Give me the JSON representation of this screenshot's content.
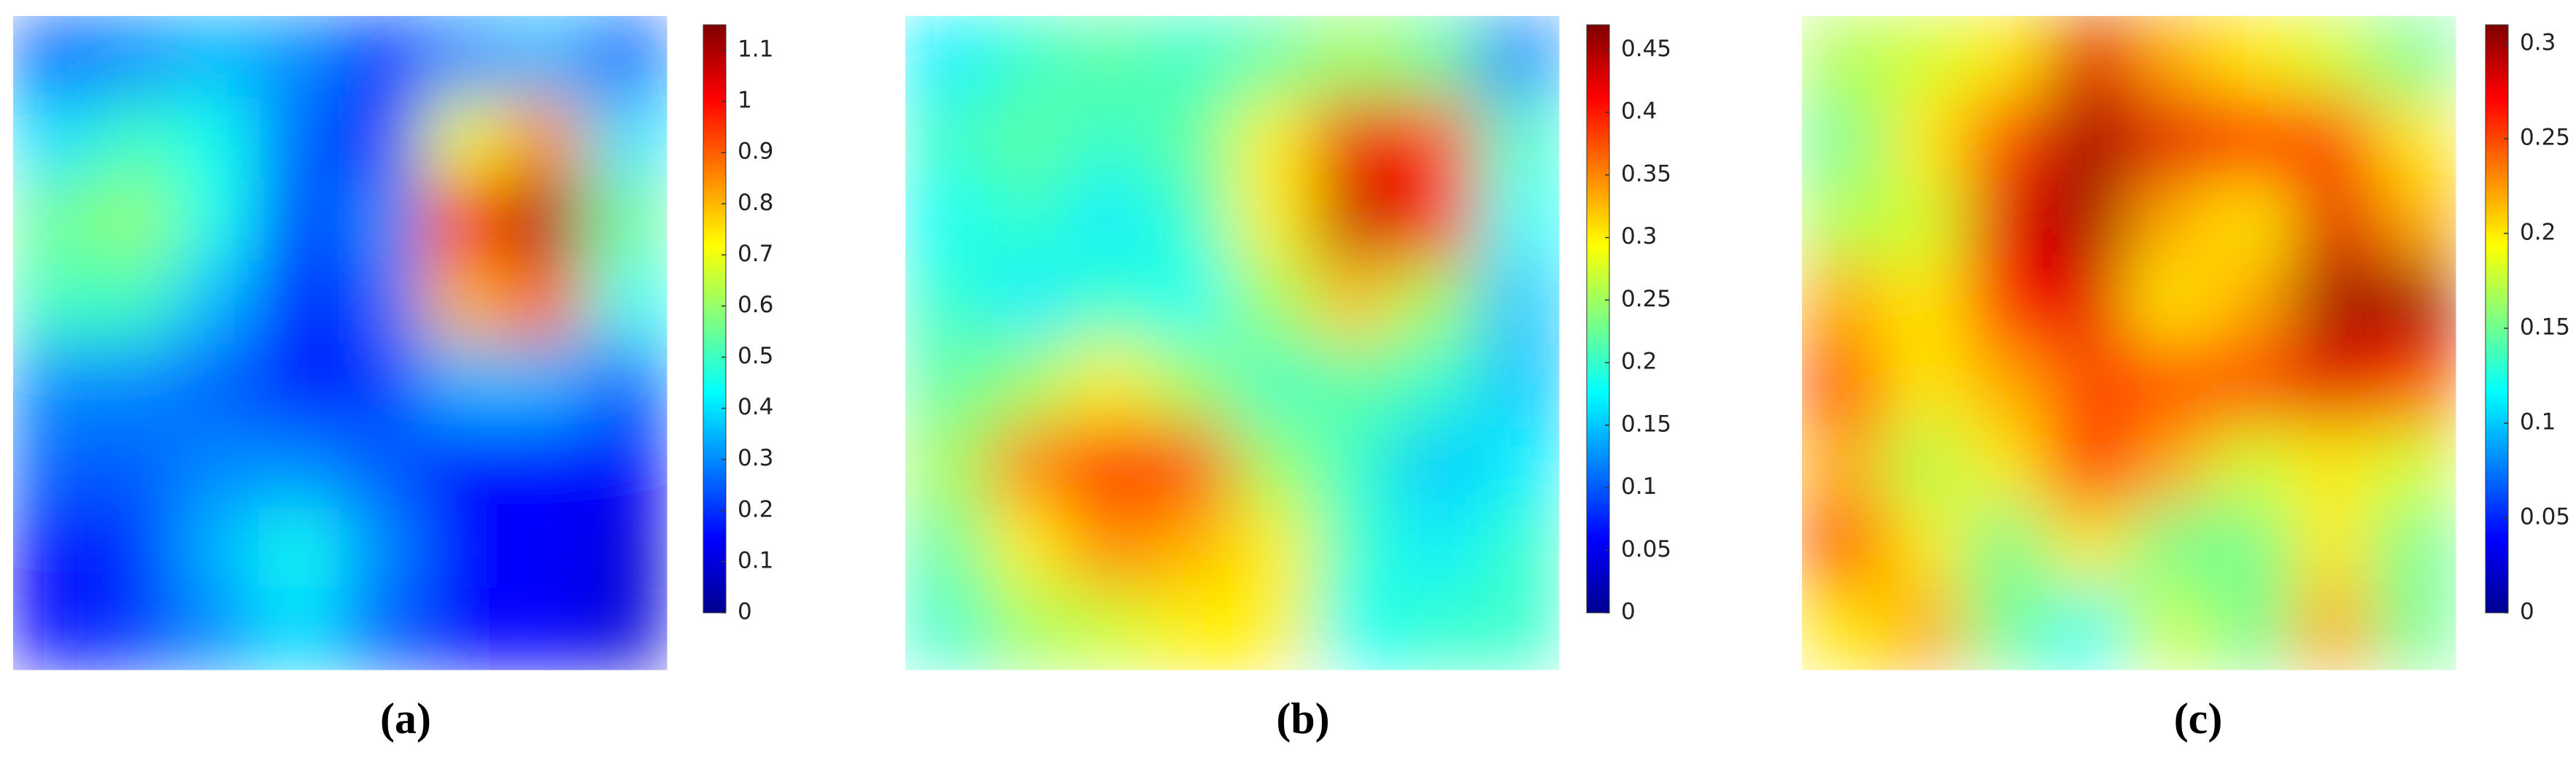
{
  "chart_data": [
    {
      "type": "heatmap",
      "label": "(a)",
      "clim": [
        0,
        1.15
      ],
      "colorbar_ticks": [
        0,
        0.1,
        0.2,
        0.3,
        0.4,
        0.5,
        0.6,
        0.7,
        0.8,
        0.9,
        1,
        1.1
      ],
      "values": [
        [
          0.25,
          0.3,
          0.35,
          0.3,
          0.2,
          0.3,
          0.35,
          0.25
        ],
        [
          0.4,
          0.5,
          0.45,
          0.25,
          0.2,
          0.7,
          0.85,
          0.4
        ],
        [
          0.55,
          0.6,
          0.45,
          0.2,
          0.3,
          0.95,
          1.1,
          0.55
        ],
        [
          0.5,
          0.5,
          0.35,
          0.15,
          0.25,
          0.8,
          0.9,
          0.45
        ],
        [
          0.3,
          0.3,
          0.25,
          0.15,
          0.2,
          0.35,
          0.35,
          0.25
        ],
        [
          0.25,
          0.25,
          0.3,
          0.3,
          0.25,
          0.15,
          0.15,
          0.15
        ],
        [
          0.15,
          0.2,
          0.35,
          0.45,
          0.3,
          0.15,
          0.15,
          0.1
        ],
        [
          0.15,
          0.2,
          0.3,
          0.4,
          0.25,
          0.15,
          0.15,
          0.1
        ]
      ]
    },
    {
      "type": "heatmap",
      "label": "(b)",
      "clim": [
        0,
        0.47
      ],
      "colorbar_ticks": [
        0,
        0.05,
        0.1,
        0.15,
        0.2,
        0.25,
        0.3,
        0.35,
        0.4,
        0.45
      ],
      "values": [
        [
          0.17,
          0.2,
          0.22,
          0.2,
          0.22,
          0.25,
          0.22,
          0.12
        ],
        [
          0.2,
          0.22,
          0.2,
          0.22,
          0.3,
          0.42,
          0.38,
          0.2
        ],
        [
          0.18,
          0.2,
          0.17,
          0.2,
          0.3,
          0.44,
          0.4,
          0.18
        ],
        [
          0.2,
          0.17,
          0.2,
          0.18,
          0.25,
          0.32,
          0.25,
          0.15
        ],
        [
          0.22,
          0.25,
          0.3,
          0.25,
          0.2,
          0.22,
          0.2,
          0.15
        ],
        [
          0.25,
          0.35,
          0.4,
          0.38,
          0.25,
          0.2,
          0.15,
          0.17
        ],
        [
          0.22,
          0.3,
          0.35,
          0.33,
          0.3,
          0.2,
          0.17,
          0.2
        ],
        [
          0.2,
          0.25,
          0.27,
          0.3,
          0.3,
          0.18,
          0.2,
          0.2
        ]
      ]
    },
    {
      "type": "heatmap",
      "label": "(c)",
      "clim": [
        0,
        0.31
      ],
      "colorbar_ticks": [
        0,
        0.05,
        0.1,
        0.15,
        0.2,
        0.25,
        0.3
      ],
      "values": [
        [
          0.17,
          0.18,
          0.2,
          0.28,
          0.22,
          0.2,
          0.18,
          0.15
        ],
        [
          0.15,
          0.2,
          0.25,
          0.3,
          0.28,
          0.27,
          0.25,
          0.2
        ],
        [
          0.17,
          0.18,
          0.28,
          0.3,
          0.22,
          0.2,
          0.28,
          0.22
        ],
        [
          0.22,
          0.2,
          0.27,
          0.28,
          0.2,
          0.22,
          0.3,
          0.3
        ],
        [
          0.25,
          0.2,
          0.22,
          0.25,
          0.25,
          0.25,
          0.28,
          0.25
        ],
        [
          0.22,
          0.17,
          0.2,
          0.27,
          0.22,
          0.18,
          0.2,
          0.18
        ],
        [
          0.25,
          0.2,
          0.15,
          0.2,
          0.15,
          0.15,
          0.2,
          0.15
        ],
        [
          0.2,
          0.22,
          0.15,
          0.12,
          0.18,
          0.15,
          0.22,
          0.15
        ]
      ]
    }
  ]
}
